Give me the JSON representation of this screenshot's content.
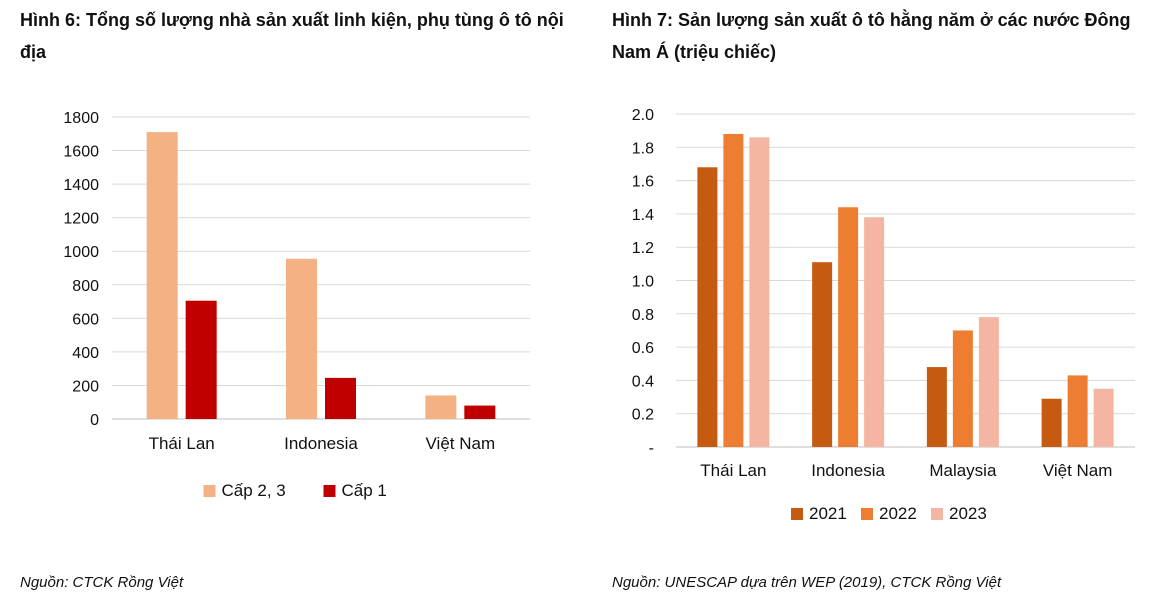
{
  "figures": [
    {
      "title": "Hình 6: Tổng số lượng nhà sản xuất linh kiện, phụ tùng ô tô nội địa",
      "source": "Nguồn: CTCK Rồng Việt"
    },
    {
      "title": "Hình 7: Sản lượng sản xuất ô tô hằng năm ở các nước Đông Nam Á (triệu chiếc)",
      "source": "Nguồn: UNESCAP dựa trên WEP (2019), CTCK Rồng Việt"
    }
  ],
  "chart_data": [
    {
      "type": "bar",
      "title": "",
      "categories": [
        "Thái Lan",
        "Indonesia",
        "Việt Nam"
      ],
      "series": [
        {
          "name": "Cấp 2, 3",
          "values": [
            1710,
            955,
            140
          ],
          "color": "#f4b183"
        },
        {
          "name": "Cấp 1",
          "values": [
            705,
            245,
            80
          ],
          "color": "#c00000"
        }
      ],
      "ylim": [
        0,
        1800
      ],
      "yticks": [
        "0",
        "200",
        "400",
        "600",
        "800",
        "1000",
        "1200",
        "1400",
        "1600",
        "1800"
      ],
      "grid": true,
      "legend": "bottom"
    },
    {
      "type": "bar",
      "title": "",
      "categories": [
        "Thái Lan",
        "Indonesia",
        "Malaysia",
        "Việt Nam"
      ],
      "series": [
        {
          "name": "2021",
          "values": [
            1.68,
            1.11,
            0.48,
            0.29
          ],
          "color": "#c55a11"
        },
        {
          "name": "2022",
          "values": [
            1.88,
            1.44,
            0.7,
            0.43
          ],
          "color": "#ed7d31"
        },
        {
          "name": "2023",
          "values": [
            1.86,
            1.38,
            0.78,
            0.35
          ],
          "color": "#f4b6a3"
        }
      ],
      "ylim": [
        0,
        2.0
      ],
      "yticks": [
        "-",
        "0.2",
        "0.4",
        "0.6",
        "0.8",
        "1.0",
        "1.2",
        "1.4",
        "1.6",
        "1.8",
        "2.0"
      ],
      "grid": true,
      "legend": "bottom"
    }
  ]
}
